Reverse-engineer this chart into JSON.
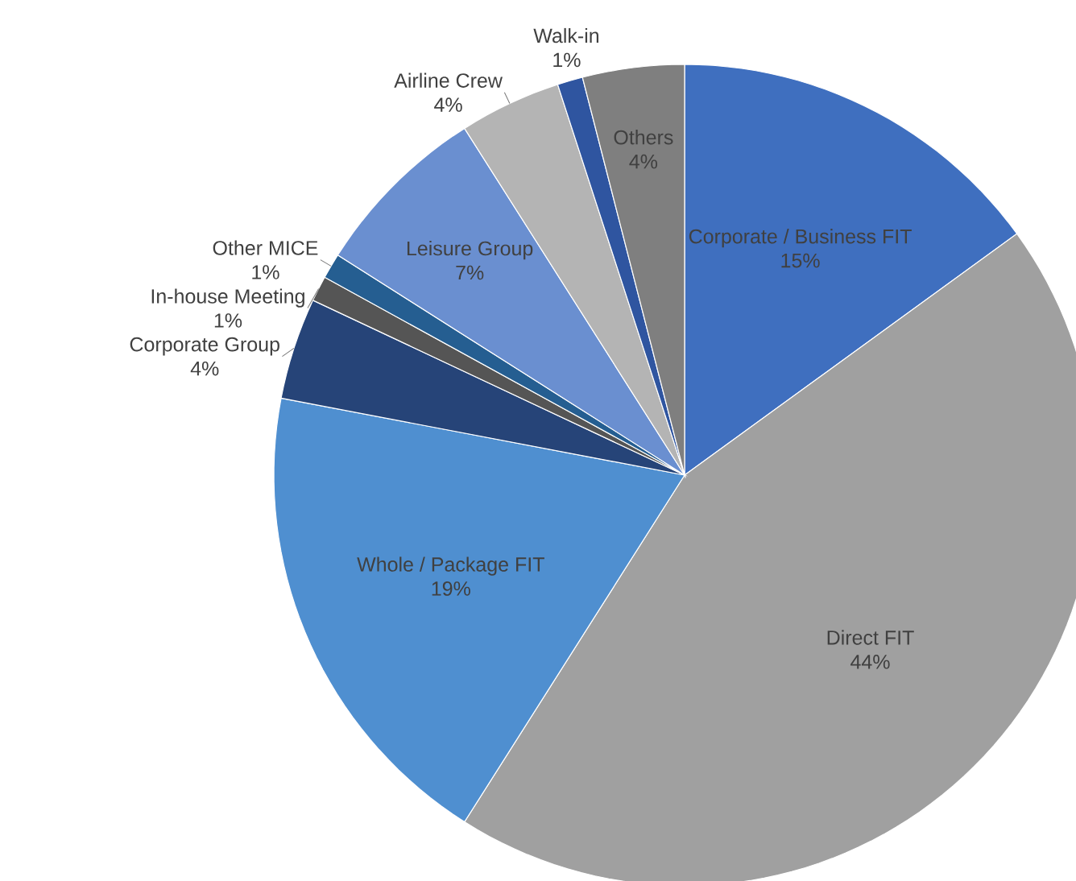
{
  "chart_data": {
    "type": "pie",
    "categories": [
      "Corporate / Business FIT",
      "Direct FIT",
      "Whole / Package FIT",
      "Corporate Group",
      "In-house Meeting",
      "Other MICE",
      "Leisure Group",
      "Airline Crew",
      "Walk-in",
      "Others"
    ],
    "values": [
      15,
      44,
      19,
      4,
      1,
      1,
      7,
      4,
      1,
      4
    ],
    "value_labels": [
      "15%",
      "44%",
      "19%",
      "4%",
      "1%",
      "1%",
      "7%",
      "4%",
      "1%",
      "4%"
    ],
    "colors": [
      "#3f6fbf",
      "#a0a0a0",
      "#4f8fd0",
      "#264478",
      "#555555",
      "#255e91",
      "#6a8fd0",
      "#b4b4b4",
      "#2f55a0",
      "#7f7f7f"
    ]
  }
}
